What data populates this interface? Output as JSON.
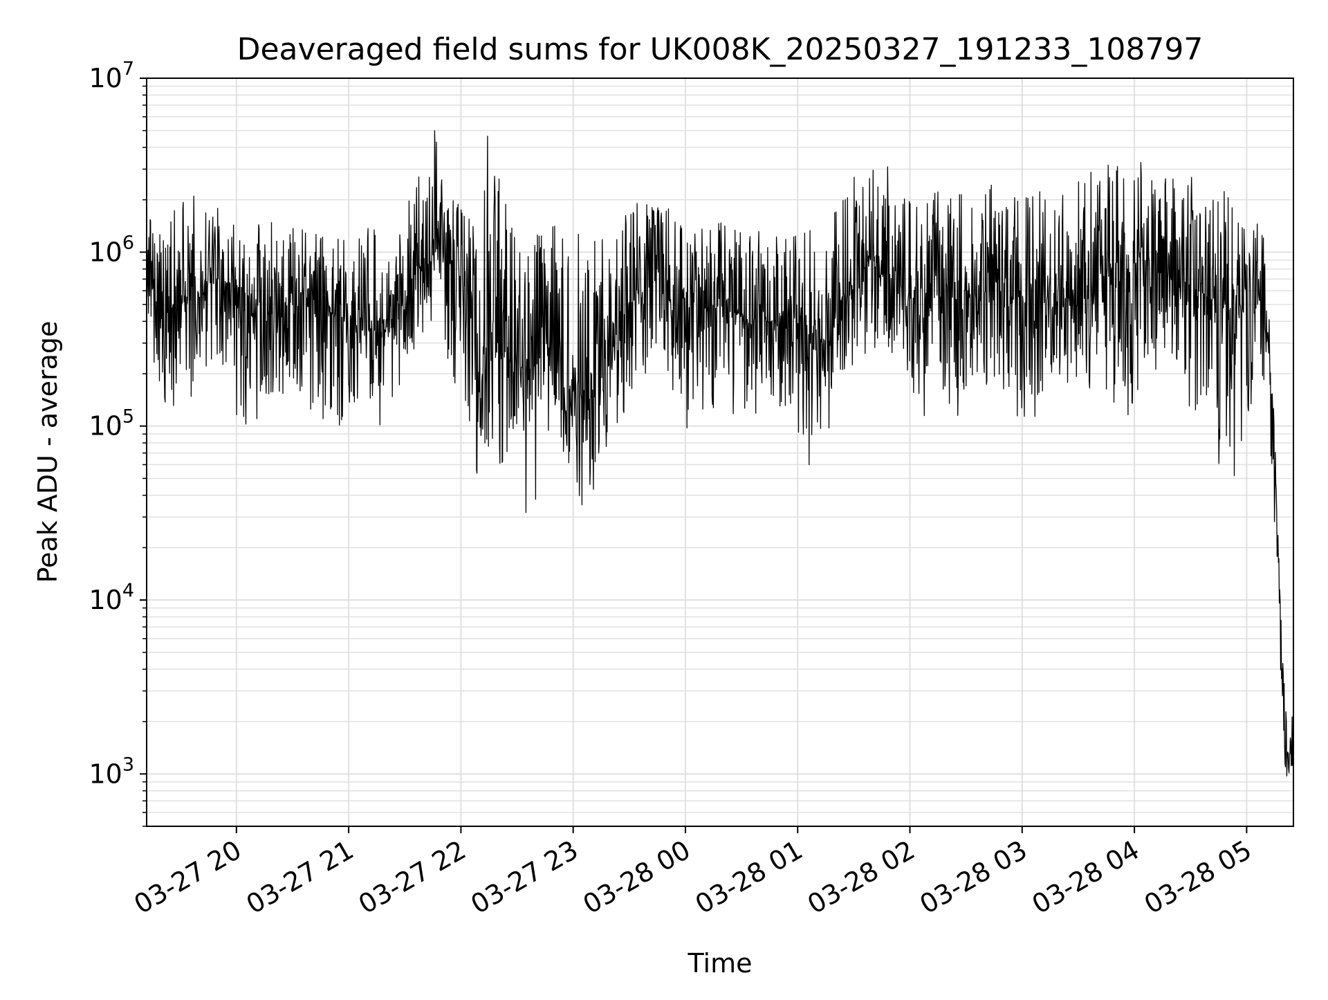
{
  "chart_data": {
    "type": "line",
    "title": "Deaveraged field sums for UK008K_20250327_191233_108797",
    "xlabel": "Time",
    "ylabel": "Peak ADU - average",
    "yscale": "log",
    "ylim": [
      500,
      10000000
    ],
    "xlim": [
      "2025-03-27 19:12",
      "2025-03-28 05:25"
    ],
    "grid": true,
    "line_color": "#000000",
    "grid_color": "#e0e0e0",
    "x_ticks": [
      "03-27 20",
      "03-27 21",
      "03-27 22",
      "03-27 23",
      "03-28 00",
      "03-28 01",
      "03-28 02",
      "03-28 03",
      "03-28 04",
      "03-28 05"
    ],
    "y_ticks": [
      {
        "base": "10",
        "exp": "3"
      },
      {
        "base": "10",
        "exp": "4"
      },
      {
        "base": "10",
        "exp": "5"
      },
      {
        "base": "10",
        "exp": "6"
      },
      {
        "base": "10",
        "exp": "7"
      }
    ],
    "series": [
      {
        "x": [
          "2025-03-27 19:12",
          "2025-03-27 19:20",
          "2025-03-27 19:30",
          "2025-03-27 19:40",
          "2025-03-27 19:50",
          "2025-03-27 20:00",
          "2025-03-27 20:10",
          "2025-03-27 20:20",
          "2025-03-27 20:30",
          "2025-03-27 20:40",
          "2025-03-27 20:50",
          "2025-03-27 21:00",
          "2025-03-27 21:10",
          "2025-03-27 21:20",
          "2025-03-27 21:30",
          "2025-03-27 21:40",
          "2025-03-27 21:48",
          "2025-03-27 21:55",
          "2025-03-27 22:05",
          "2025-03-27 22:10",
          "2025-03-27 22:15",
          "2025-03-27 22:25",
          "2025-03-27 22:35",
          "2025-03-27 22:45",
          "2025-03-27 22:55",
          "2025-03-27 23:05",
          "2025-03-27 23:15",
          "2025-03-27 23:25",
          "2025-03-27 23:35",
          "2025-03-27 23:45",
          "2025-03-27 23:55",
          "2025-03-28 00:05",
          "2025-03-28 00:15",
          "2025-03-28 00:25",
          "2025-03-28 00:35",
          "2025-03-28 00:45",
          "2025-03-28 00:55",
          "2025-03-28 01:05",
          "2025-03-28 01:15",
          "2025-03-28 01:25",
          "2025-03-28 01:35",
          "2025-03-28 01:45",
          "2025-03-28 01:55",
          "2025-03-28 02:05",
          "2025-03-28 02:15",
          "2025-03-28 02:25",
          "2025-03-28 02:35",
          "2025-03-28 02:45",
          "2025-03-28 02:55",
          "2025-03-28 03:05",
          "2025-03-28 03:15",
          "2025-03-28 03:25",
          "2025-03-28 03:35",
          "2025-03-28 03:45",
          "2025-03-28 03:55",
          "2025-03-28 04:05",
          "2025-03-28 04:15",
          "2025-03-28 04:25",
          "2025-03-28 04:35",
          "2025-03-28 04:45",
          "2025-03-28 04:55",
          "2025-03-28 05:05",
          "2025-03-28 05:10",
          "2025-03-28 05:15",
          "2025-03-28 05:20",
          "2025-03-28 05:25"
        ],
        "y": [
          800000,
          450000,
          500000,
          600000,
          700000,
          650000,
          500000,
          450000,
          500000,
          550000,
          450000,
          400000,
          350000,
          350000,
          600000,
          900000,
          1200000,
          900000,
          600000,
          150000,
          400000,
          250000,
          200000,
          250000,
          200000,
          150000,
          150000,
          400000,
          600000,
          700000,
          500000,
          450000,
          500000,
          450000,
          400000,
          400000,
          450000,
          350000,
          300000,
          600000,
          800000,
          900000,
          600000,
          500000,
          550000,
          500000,
          600000,
          700000,
          550000,
          500000,
          600000,
          500000,
          550000,
          800000,
          700000,
          900000,
          800000,
          700000,
          600000,
          500000,
          400000,
          600000,
          500000,
          80000,
          1500,
          1200
        ],
        "high": [
          1700000,
          1400000,
          2400000,
          2200000,
          1800000,
          1900000,
          1600000,
          1500000,
          1400000,
          1300000,
          1200000,
          1300000,
          1500000,
          1200000,
          1500000,
          5000000,
          5500000,
          2000000,
          2000000,
          700000,
          6700000,
          1800000,
          1200000,
          1500000,
          1600000,
          1400000,
          1300000,
          1800000,
          2000000,
          2200000,
          1700000,
          1400000,
          1500000,
          1500000,
          1300000,
          1400000,
          1400000,
          1500000,
          1300000,
          2500000,
          3000000,
          3500000,
          2600000,
          2000000,
          2500000,
          2400000,
          2600000,
          2500000,
          2200000,
          2400000,
          2400000,
          2300000,
          2800000,
          3500000,
          3300000,
          3500000,
          3000000,
          3000000,
          2600000,
          3900000,
          1500000,
          1600000,
          1700000,
          90000,
          3500,
          2500
        ],
        "low": [
          400000,
          120000,
          100000,
          150000,
          200000,
          100000,
          100000,
          150000,
          130000,
          120000,
          100000,
          90000,
          100000,
          100000,
          200000,
          300000,
          400000,
          200000,
          100000,
          40000,
          50000,
          60000,
          30000,
          45000,
          70000,
          30000,
          50000,
          100000,
          200000,
          200000,
          150000,
          60000,
          100000,
          100000,
          120000,
          100000,
          120000,
          50000,
          80000,
          200000,
          200000,
          300000,
          200000,
          100000,
          150000,
          100000,
          200000,
          150000,
          100000,
          100000,
          200000,
          150000,
          120000,
          150000,
          100000,
          200000,
          200000,
          150000,
          100000,
          60000,
          50000,
          130000,
          150000,
          20000,
          1000,
          900
        ]
      }
    ]
  }
}
